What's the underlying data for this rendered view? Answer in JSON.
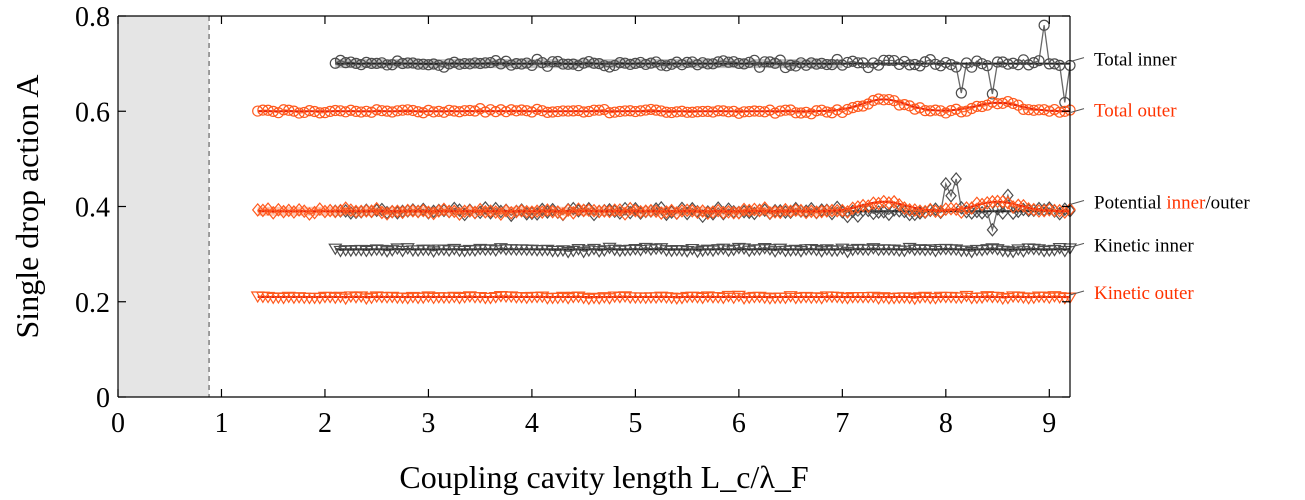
{
  "chart_data": {
    "type": "scatter",
    "title": "",
    "xlabel": "Coupling cavity length L_c/λ_F",
    "ylabel": "Single drop action A",
    "xlim": [
      0,
      9.2
    ],
    "ylim": [
      0,
      0.8
    ],
    "x_ticks": [
      "0",
      "1",
      "2",
      "3",
      "4",
      "5",
      "6",
      "7",
      "8",
      "9"
    ],
    "y_ticks": [
      "0",
      "0.2",
      "0.4",
      "0.6",
      "0.8"
    ],
    "grid": false,
    "shaded_region": {
      "x_from": 0,
      "x_to": 0.88,
      "color": "#e5e5e5"
    },
    "vertical_dashed_line_x": 0.88,
    "colors": {
      "inner": "#4d4d4d",
      "outer": "#ff5a1e",
      "inner_text": "#000000",
      "outer_text": "#ff3300"
    },
    "series": [
      {
        "name": "Total inner",
        "group": "inner",
        "marker": "circle",
        "x_start": 2.1,
        "x_end": 9.2,
        "mean": 0.7,
        "jitter": 0.012,
        "band_to": 7.0,
        "spike_region": [
          7.9,
          9.2
        ],
        "label_lines": [
          [
            "Total inner",
            "inner_text"
          ]
        ]
      },
      {
        "name": "Total outer",
        "group": "outer",
        "marker": "circle",
        "x_start": 1.35,
        "x_end": 9.2,
        "mean": 0.6,
        "jitter": 0.006,
        "bumps": [
          [
            7.4,
            0.025
          ],
          [
            8.5,
            0.018
          ]
        ],
        "label_lines": [
          [
            "Total outer",
            "outer_text"
          ]
        ]
      },
      {
        "name": "Potential inner",
        "group": "inner",
        "marker": "diamond",
        "x_start": 2.1,
        "x_end": 9.2,
        "mean": 0.39,
        "jitter": 0.012,
        "spike_region": [
          7.9,
          8.9
        ]
      },
      {
        "name": "Potential outer",
        "group": "outer",
        "marker": "diamond",
        "x_start": 1.35,
        "x_end": 9.2,
        "mean": 0.39,
        "jitter": 0.008,
        "bumps": [
          [
            7.4,
            0.02
          ],
          [
            8.5,
            0.02
          ]
        ],
        "band_to": 7.0,
        "label_lines": [
          [
            "Potential ",
            "inner_text"
          ],
          [
            "inner",
            "outer_text"
          ],
          [
            "/outer",
            "inner_text"
          ]
        ]
      },
      {
        "name": "Kinetic inner",
        "group": "inner",
        "marker": "triangle",
        "x_start": 2.1,
        "x_end": 9.2,
        "mean": 0.31,
        "jitter": 0.006,
        "label_lines": [
          [
            "Kinetic inner",
            "inner_text"
          ]
        ]
      },
      {
        "name": "Kinetic outer",
        "group": "outer",
        "marker": "triangle",
        "x_start": 1.35,
        "x_end": 9.2,
        "mean": 0.21,
        "jitter": 0.004,
        "label_lines": [
          [
            "Kinetic outer",
            "outer_text"
          ]
        ]
      }
    ]
  }
}
